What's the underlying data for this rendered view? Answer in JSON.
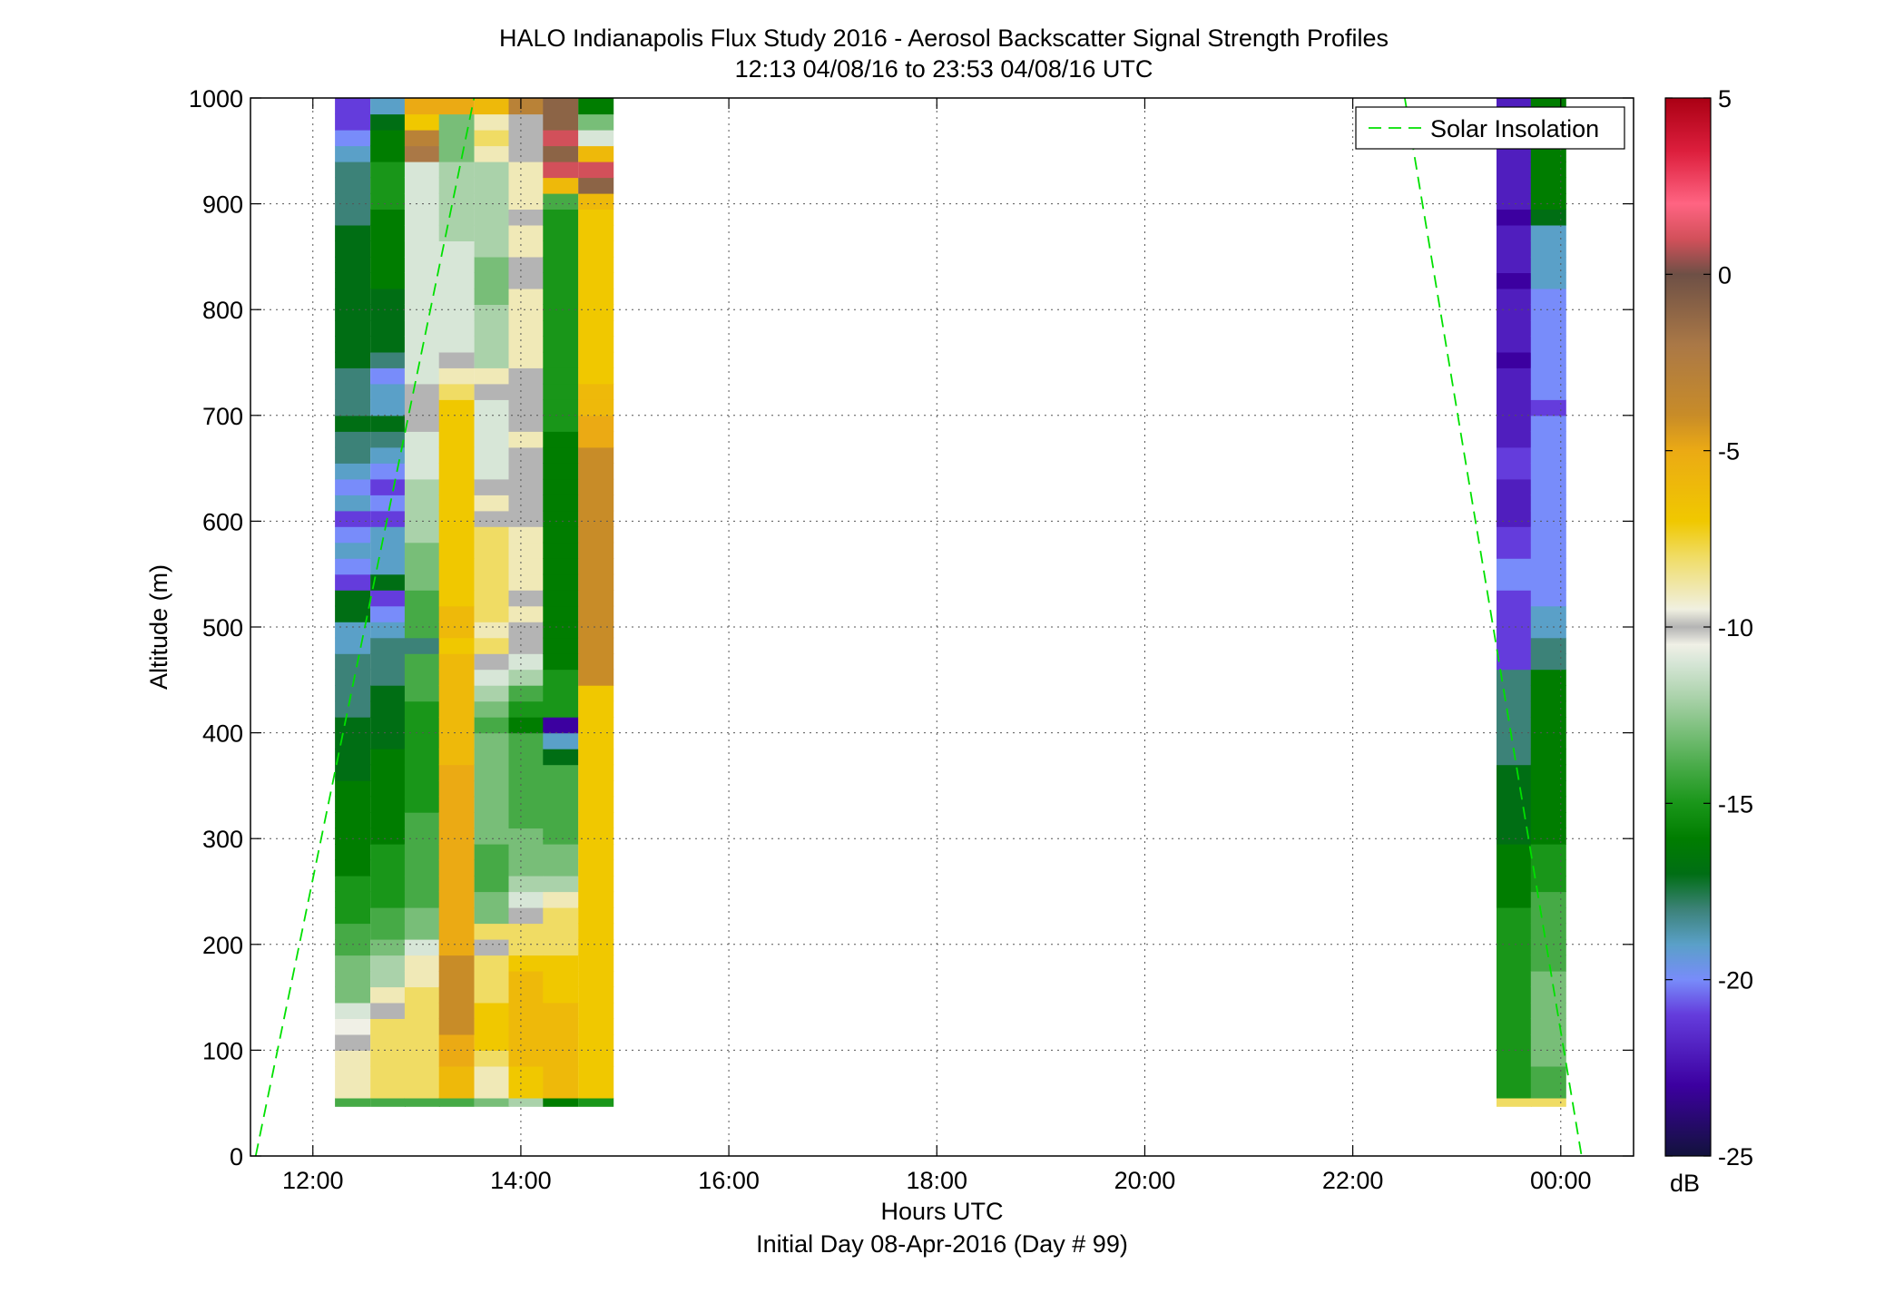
{
  "chart_data": {
    "type": "heatmap",
    "title": "HALO Indianapolis Flux Study 2016 - Aerosol Backscatter Signal Strength Profiles",
    "subtitle": "12:13 04/08/16 to 23:53 04/08/16  UTC",
    "xlabel": "Hours UTC",
    "xlabel2": "Initial Day 08-Apr-2016 (Day # 99)",
    "ylabel": "Altitude (m)",
    "xlim": [
      11.4,
      24.7
    ],
    "ylim": [
      0,
      1000
    ],
    "x_ticks": [
      {
        "value": 12,
        "label": "12:00"
      },
      {
        "value": 14,
        "label": "14:00"
      },
      {
        "value": 16,
        "label": "16:00"
      },
      {
        "value": 18,
        "label": "18:00"
      },
      {
        "value": 20,
        "label": "20:00"
      },
      {
        "value": 22,
        "label": "22:00"
      },
      {
        "value": 24,
        "label": "00:00"
      }
    ],
    "y_ticks": [
      {
        "value": 0,
        "label": "0"
      },
      {
        "value": 100,
        "label": "100"
      },
      {
        "value": 200,
        "label": "200"
      },
      {
        "value": 300,
        "label": "300"
      },
      {
        "value": 400,
        "label": "400"
      },
      {
        "value": 500,
        "label": "500"
      },
      {
        "value": 600,
        "label": "600"
      },
      {
        "value": 700,
        "label": "700"
      },
      {
        "value": 800,
        "label": "800"
      },
      {
        "value": 900,
        "label": "900"
      },
      {
        "value": 1000,
        "label": "1000"
      }
    ],
    "grid": true,
    "legend": {
      "position": "top-right",
      "entries": [
        {
          "name": "Solar Insolation",
          "color": "#00e000",
          "style": "dashed"
        }
      ]
    },
    "colorbar": {
      "unit": "dB",
      "range": [
        -25,
        5
      ],
      "ticks": [
        {
          "value": 5,
          "label": "5"
        },
        {
          "value": 0,
          "label": "0"
        },
        {
          "value": -5,
          "label": "-5"
        },
        {
          "value": -10,
          "label": "-10"
        },
        {
          "value": -15,
          "label": "-15"
        },
        {
          "value": -20,
          "label": "-20"
        },
        {
          "value": -25,
          "label": "-25"
        }
      ]
    },
    "altitude_bins": [
      55,
      85,
      100,
      115,
      130,
      145,
      160,
      175,
      190,
      205,
      220,
      235,
      250,
      265,
      280,
      295,
      310,
      325,
      340,
      355,
      370,
      385,
      400,
      415,
      430,
      445,
      460,
      475,
      490,
      505,
      520,
      535,
      550,
      565,
      580,
      595,
      610,
      625,
      640,
      655,
      670,
      685,
      700,
      715,
      730,
      745,
      760,
      775,
      790,
      805,
      820,
      835,
      850,
      865,
      880,
      895,
      910,
      925,
      940,
      955,
      970,
      985,
      1000
    ],
    "profiles": [
      {
        "time": 12.38,
        "values": [
          -14,
          -9,
          -9,
          -10,
          -10.5,
          -11,
          -13,
          -13,
          -13,
          -14,
          -14,
          -15,
          -15,
          -15,
          -16,
          -16,
          -16,
          -16,
          -16,
          -16,
          -17,
          -17,
          -17,
          -17,
          -18,
          -18,
          -18,
          -18,
          -19,
          -19,
          -17,
          -17,
          -21,
          -20,
          -19,
          -20,
          -21,
          -19,
          -20,
          -19,
          -18,
          -18,
          -17,
          -18,
          -18,
          -18,
          -17,
          -17,
          -17,
          -17,
          -17,
          -17,
          -17,
          -17,
          -17,
          -18,
          -18,
          -18,
          -18,
          -19,
          -20,
          -21,
          -21
        ]
      },
      {
        "time": 12.72,
        "values": [
          -14,
          -8,
          -8,
          -8,
          -8,
          -10,
          -9,
          -12,
          -12,
          -13,
          -14,
          -14,
          -15,
          -15,
          -15,
          -15,
          -16,
          -16,
          -16,
          -16,
          -16,
          -16,
          -17,
          -17,
          -17,
          -17,
          -18,
          -18,
          -18,
          -19,
          -20,
          -21,
          -17,
          -19,
          -19,
          -19,
          -21,
          -20,
          -21,
          -20,
          -19,
          -18,
          -17,
          -19,
          -19,
          -20,
          -18,
          -17,
          -17,
          -17,
          -17,
          -16,
          -16,
          -16,
          -16,
          -16,
          -15,
          -15,
          -15,
          -16,
          -16,
          -17,
          -19
        ]
      },
      {
        "time": 13.05,
        "values": [
          -14,
          -8,
          -8,
          -8,
          -8,
          -8,
          -8,
          -9,
          -9,
          -11,
          -13,
          -13,
          -14,
          -14,
          -14,
          -14,
          -14,
          -14,
          -15,
          -15,
          -15,
          -15,
          -15,
          -15,
          -15,
          -14,
          -14,
          -14,
          -18,
          -14,
          -14,
          -14,
          -13,
          -13,
          -13,
          -12,
          -12,
          -12,
          -12,
          -11,
          -11,
          -11,
          -10,
          -10,
          -10,
          -11,
          -11,
          -11,
          -11,
          -11,
          -11,
          -11,
          -11,
          -11,
          -11,
          -11,
          -11,
          -11,
          -11,
          -2,
          -3,
          -7,
          -5
        ]
      },
      {
        "time": 13.38,
        "values": [
          -14,
          -6,
          -5,
          -5,
          -4,
          -4,
          -4,
          -4,
          -4,
          -5,
          -5,
          -5,
          -5,
          -5,
          -5,
          -5,
          -5,
          -5,
          -5,
          -5,
          -5,
          -6,
          -6,
          -6,
          -6,
          -6,
          -6,
          -6,
          -7,
          -6,
          -6,
          -7,
          -7,
          -7,
          -7,
          -7,
          -7,
          -7,
          -7,
          -7,
          -7,
          -7,
          -7,
          -7,
          -8,
          -9,
          -10,
          -11,
          -11,
          -11,
          -11,
          -11,
          -11,
          -11,
          -12,
          -12,
          -12,
          -12,
          -12,
          -13,
          -13,
          -13,
          -5
        ]
      },
      {
        "time": 13.72,
        "values": [
          -13,
          -9,
          -8,
          -7,
          -7,
          -7,
          -8,
          -8,
          -8,
          -10,
          -8,
          -13,
          -13,
          -14,
          -14,
          -14,
          -13,
          -13,
          -13,
          -13,
          -13,
          -13,
          -13,
          -14,
          -13,
          -12,
          -11,
          -10,
          -8,
          -9,
          -8,
          -8,
          -8,
          -8,
          -8,
          -8,
          -10,
          -9,
          -10,
          -11,
          -11,
          -11,
          -11,
          -11,
          -10,
          -9,
          -12,
          -12,
          -12,
          -12,
          -13,
          -13,
          -13,
          -12,
          -12,
          -12,
          -12,
          -12,
          -12,
          -9,
          -8,
          -9,
          -6
        ]
      },
      {
        "time": 14.05,
        "values": [
          -12,
          -7,
          -6,
          -6,
          -6,
          -6,
          -6,
          -6,
          -7,
          -8,
          -8,
          -10,
          -11,
          -12,
          -13,
          -13,
          -13,
          -14,
          -14,
          -14,
          -14,
          -14,
          -14,
          -16,
          -15,
          -14,
          -12,
          -11,
          -10,
          -10,
          -9,
          -10,
          -9,
          -9,
          -9,
          -9,
          -10,
          -10,
          -10,
          -10,
          -10,
          -9,
          -10,
          -10,
          -10,
          -10,
          -9,
          -9,
          -9,
          -9,
          -9,
          -10,
          -10,
          -9,
          -9,
          -10,
          -9,
          -9,
          -9,
          -10,
          -10,
          -10,
          -3
        ]
      },
      {
        "time": 14.38,
        "values": [
          -16,
          -6,
          -6,
          -6,
          -6,
          -6,
          -7,
          -7,
          -7,
          -8,
          -8,
          -8,
          -9,
          -12,
          -13,
          -13,
          -14,
          -14,
          -14,
          -14,
          -14,
          -17,
          -19,
          -23,
          -15,
          -15,
          -15,
          -16,
          -16,
          -16,
          -16,
          -16,
          -16,
          -16,
          -16,
          -16,
          -16,
          -16,
          -16,
          -16,
          -16,
          -16,
          -15,
          -15,
          -15,
          -15,
          -15,
          -15,
          -15,
          -15,
          -15,
          -15,
          -15,
          -15,
          -15,
          -15,
          -14,
          -6,
          1,
          -1,
          1,
          -1,
          -1
        ]
      },
      {
        "time": 14.72,
        "values": [
          -15,
          -7,
          -7,
          -7,
          -7,
          -7,
          -7,
          -7,
          -7,
          -7,
          -7,
          -7,
          -7,
          -7,
          -7,
          -7,
          -7,
          -7,
          -7,
          -7,
          -7,
          -7,
          -7,
          -7,
          -7,
          -7,
          -4,
          -4,
          -4,
          -4,
          -4,
          -4,
          -4,
          -4,
          -4,
          -4,
          -4,
          -4,
          -4,
          -4,
          -4,
          -5,
          -5,
          -6,
          -6,
          -7,
          -7,
          -7,
          -7,
          -7,
          -7,
          -7,
          -7,
          -7,
          -7,
          -7,
          -6,
          -1,
          1,
          -6,
          -11,
          -13,
          -16
        ]
      },
      {
        "time": 23.55,
        "values": [
          -8,
          -15,
          -15,
          -15,
          -15,
          -15,
          -15,
          -15,
          -15,
          -15,
          -15,
          -15,
          -16,
          -16,
          -16,
          -16,
          -17,
          -17,
          -17,
          -17,
          -17,
          -18,
          -18,
          -18,
          -18,
          -18,
          -18,
          -21,
          -21,
          -21,
          -21,
          -21,
          -20,
          -20,
          -21,
          -21,
          -22,
          -22,
          -22,
          -21,
          -21,
          -22,
          -22,
          -22,
          -22,
          -22,
          -23,
          -22,
          -22,
          -22,
          -22,
          -23,
          -22,
          -22,
          -22,
          -23,
          -22,
          -22,
          -22,
          -22,
          -22,
          -22,
          -22
        ]
      },
      {
        "time": 23.88,
        "values": [
          -8,
          -14,
          -13,
          -13,
          -13,
          -13,
          -13,
          -13,
          -14,
          -14,
          -14,
          -14,
          -14,
          -15,
          -15,
          -15,
          -16,
          -16,
          -16,
          -16,
          -16,
          -16,
          -16,
          -16,
          -16,
          -16,
          -16,
          -18,
          -18,
          -19,
          -19,
          -20,
          -20,
          -20,
          -20,
          -20,
          -20,
          -20,
          -20,
          -20,
          -20,
          -20,
          -20,
          -21,
          -20,
          -20,
          -20,
          -20,
          -20,
          -20,
          -20,
          -19,
          -19,
          -19,
          -19,
          -17,
          -16,
          -16,
          -16,
          -16,
          -16,
          -16,
          -16
        ]
      }
    ],
    "solar_insolation": {
      "name": "Solar Insolation",
      "morning": [
        [
          11.45,
          0
        ],
        [
          13.55,
          1000
        ]
      ],
      "evening": [
        [
          22.5,
          1000
        ],
        [
          24.2,
          0
        ]
      ]
    }
  }
}
